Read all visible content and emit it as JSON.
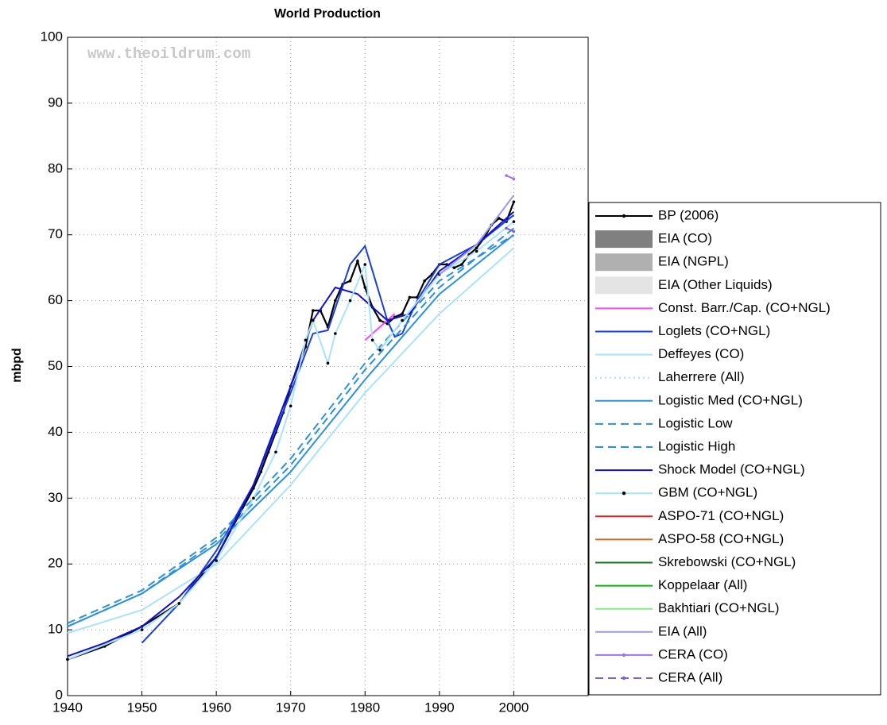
{
  "chart_data": {
    "type": "line",
    "title": "World Production",
    "ylabel": "mbpd",
    "watermark": "www.theoildrum.com",
    "xlim": [
      1940,
      2010
    ],
    "xticks": [
      1940,
      1950,
      1960,
      1970,
      1980,
      1990,
      2000
    ],
    "ylim": [
      0,
      100
    ],
    "yticks": [
      0,
      10,
      20,
      30,
      40,
      50,
      60,
      70,
      80,
      90,
      100
    ],
    "grid": true,
    "legend": "right",
    "series": [
      {
        "name": "BP (2006)",
        "color": "#000000",
        "marker": "dot",
        "x": [
          1940,
          1945,
          1950,
          1955,
          1960,
          1965,
          1966,
          1967,
          1968,
          1969,
          1970,
          1971,
          1972,
          1973,
          1974,
          1975,
          1976,
          1977,
          1978,
          1979,
          1980,
          1981,
          1982,
          1983,
          1984,
          1985,
          1986,
          1987,
          1988,
          1989,
          1990,
          1991,
          1992,
          1993,
          1994,
          1995,
          1996,
          1997,
          1998,
          1999,
          2000
        ],
        "values": [
          5.5,
          7.5,
          10.5,
          14,
          21,
          31.5,
          34,
          37,
          40,
          43,
          47,
          50,
          53,
          58.5,
          58.5,
          56,
          60,
          62.5,
          63,
          66,
          62,
          59,
          57,
          56.5,
          57.5,
          58,
          60.5,
          60.5,
          63,
          64,
          65.5,
          65.5,
          65,
          65.5,
          67,
          68,
          69.5,
          71.5,
          72.5,
          72,
          75
        ]
      },
      {
        "name": "EIA (CO)",
        "color": "#808080",
        "style": "patch",
        "x": [],
        "values": []
      },
      {
        "name": "EIA (NGPL)",
        "color": "#b0b0b0",
        "style": "patch",
        "x": [],
        "values": []
      },
      {
        "name": "EIA (Other Liquids)",
        "color": "#e4e4e4",
        "style": "patch",
        "x": [],
        "values": []
      },
      {
        "name": "Const. Barr./Cap. (CO+NGL)",
        "color": "#ff44ff",
        "x": [
          1980,
          1984
        ],
        "values": [
          54,
          58
        ]
      },
      {
        "name": "Loglets (CO+NGL)",
        "color": "#1a3fe0",
        "x": [
          1950,
          1955,
          1960,
          1965,
          1970,
          1973,
          1975,
          1978,
          1980,
          1983,
          1984,
          1985,
          1987,
          1990,
          1995,
          2000
        ],
        "values": [
          8,
          14,
          22,
          32,
          46,
          55,
          55.5,
          65.5,
          68.3,
          57,
          54.5,
          55,
          60,
          65.5,
          68.5,
          73
        ]
      },
      {
        "name": "Deffeyes (CO)",
        "color": "#a8e4f8",
        "x": [
          1940,
          1950,
          1960,
          1970,
          1980,
          1990,
          2000
        ],
        "values": [
          9.5,
          13,
          20,
          32,
          46,
          58,
          68
        ]
      },
      {
        "name": "Laherrere (All)",
        "color": "#a8e4f8",
        "style": "dotted",
        "x": [],
        "values": []
      },
      {
        "name": "Logistic Med (CO+NGL)",
        "color": "#2a90e0",
        "x": [
          1940,
          1950,
          1960,
          1970,
          1980,
          1990,
          2000
        ],
        "values": [
          10.5,
          15.5,
          23,
          34,
          48,
          61,
          70
        ]
      },
      {
        "name": "Logistic Low",
        "color": "#2a90e0",
        "style": "dashed",
        "x": [
          1940,
          1950,
          1960,
          1970,
          1980,
          1990,
          2000
        ],
        "values": [
          11,
          16,
          24,
          36,
          50.5,
          63,
          70
        ]
      },
      {
        "name": "Logistic High",
        "color": "#2a90e0",
        "style": "dashed",
        "x": [
          1940,
          1950,
          1960,
          1970,
          1980,
          1990,
          2000
        ],
        "values": [
          10.5,
          15.5,
          23.5,
          35,
          49.5,
          62,
          71
        ]
      },
      {
        "name": "Shock Model (CO+NGL)",
        "color": "#1010d0",
        "x": [
          1940,
          1945,
          1950,
          1955,
          1960,
          1965,
          1970,
          1973,
          1976,
          1979,
          1983,
          1986,
          1990,
          1995,
          2000
        ],
        "values": [
          6,
          8,
          10.5,
          15,
          21,
          32,
          47,
          57,
          62,
          61,
          57,
          58,
          64.5,
          68.5,
          73.5
        ]
      },
      {
        "name": "GBM (CO+NGL)",
        "color": "#a8e4f8",
        "marker": "dot",
        "x": [
          1940,
          1950,
          1955,
          1960,
          1965,
          1968,
          1970,
          1972,
          1973,
          1975,
          1976,
          1978,
          1980,
          1981,
          1982,
          1985,
          1990,
          1995,
          2000
        ],
        "values": [
          5.5,
          10,
          14,
          20.5,
          30,
          37,
          44,
          54,
          57,
          50.5,
          55,
          60,
          65.5,
          54,
          52.5,
          57,
          64,
          67.5,
          72
        ]
      },
      {
        "name": "ASPO-71 (CO+NGL)",
        "color": "#e82020",
        "x": [],
        "values": []
      },
      {
        "name": "ASPO-58 (CO+NGL)",
        "color": "#c87020",
        "x": [],
        "values": []
      },
      {
        "name": "Skrebowski (CO+NGL)",
        "color": "#107a10",
        "x": [],
        "values": []
      },
      {
        "name": "Koppelaar (All)",
        "color": "#10b010",
        "x": [],
        "values": []
      },
      {
        "name": "Bakhtiari (CO+NGL)",
        "color": "#80f080",
        "x": [],
        "values": []
      },
      {
        "name": "EIA (All)",
        "color": "#9999ee",
        "x": [
          1990,
          1995,
          2000
        ],
        "values": [
          64,
          68.5,
          76
        ]
      },
      {
        "name": "CERA (CO)",
        "color": "#a070f0",
        "marker": "dot",
        "x": [
          1999,
          2000
        ],
        "values": [
          79,
          78.5
        ]
      },
      {
        "name": "CERA (All)",
        "color": "#8060d0",
        "marker": "dot",
        "style": "dashed",
        "x": [
          1999,
          2000
        ],
        "values": [
          71,
          70.5
        ]
      }
    ]
  }
}
